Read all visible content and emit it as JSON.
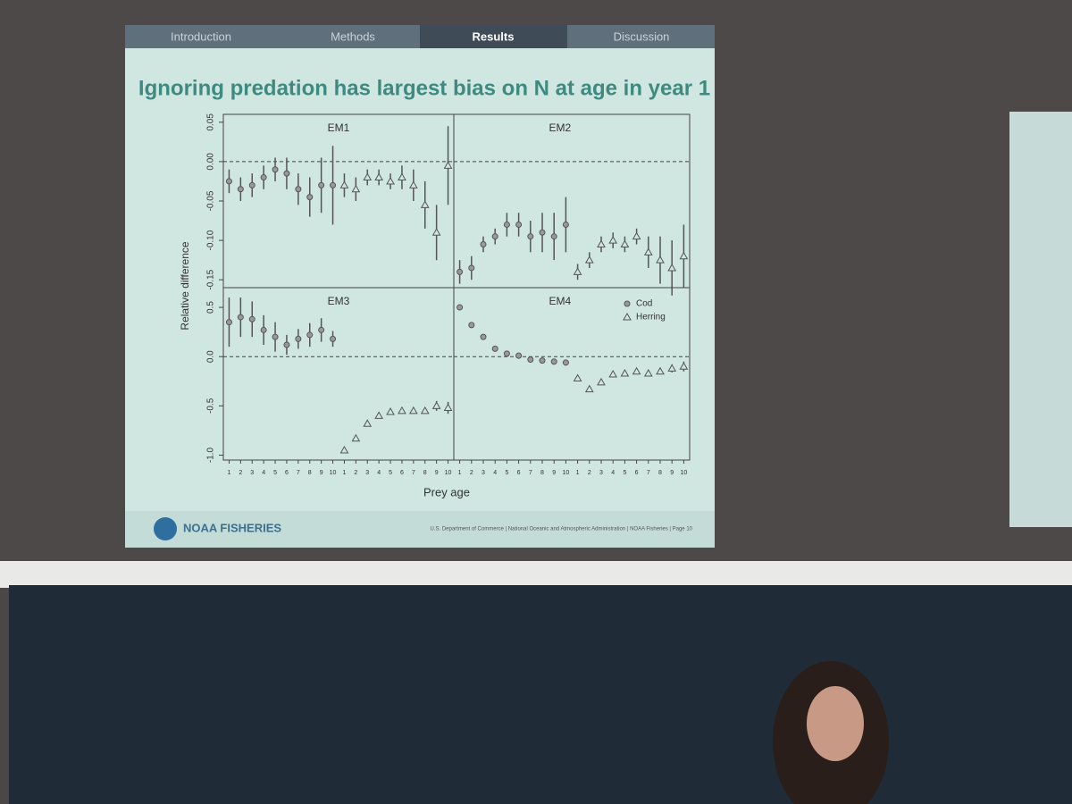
{
  "slide": {
    "nav": [
      "Introduction",
      "Methods",
      "Results",
      "Discussion"
    ],
    "title": "Ignoring predation has largest bias on N at age in year 1",
    "ylabel": "Relative difference",
    "xlabel": "Prey age",
    "logo": "NOAA FISHERIES",
    "footer": "U.S. Department of Commerce | National Oceanic and Atmospheric Administration | NOAA Fisheries | Page 10"
  },
  "chart_data": [
    {
      "type": "errorbar",
      "title": "EM1",
      "categories": [
        null,
        null,
        null,
        null,
        null,
        null,
        null,
        null,
        null,
        null,
        null,
        null,
        null,
        null,
        null,
        null,
        null,
        null,
        null,
        null
      ],
      "series": [
        {
          "name": "Cod",
          "marker": "circle",
          "color": "#555555",
          "values": [
            -0.025,
            -0.035,
            -0.03,
            -0.02,
            -0.01,
            -0.015,
            -0.035,
            -0.045,
            -0.03,
            -0.03,
            null,
            null,
            null,
            null,
            null,
            null,
            null,
            null,
            null,
            null
          ],
          "errors": [
            0.015,
            0.015,
            0.015,
            0.015,
            0.015,
            0.02,
            0.02,
            0.025,
            0.035,
            0.05,
            null,
            null,
            null,
            null,
            null,
            null,
            null,
            null,
            null,
            null
          ]
        },
        {
          "name": "Herring",
          "marker": "triangle",
          "color": "#555555",
          "values": [
            null,
            null,
            null,
            null,
            null,
            null,
            null,
            null,
            null,
            null,
            -0.03,
            -0.035,
            -0.02,
            -0.02,
            -0.025,
            -0.02,
            -0.03,
            -0.055,
            -0.09,
            -0.005
          ],
          "errors": [
            null,
            null,
            null,
            null,
            null,
            null,
            null,
            null,
            null,
            null,
            0.015,
            0.015,
            0.01,
            0.01,
            0.01,
            0.015,
            0.02,
            0.03,
            0.035,
            0.05
          ]
        }
      ],
      "ylim": [
        -0.16,
        0.06
      ],
      "yticks": [
        -0.15,
        {
          "value": -0.1,
          "label": "-0.10"
        },
        -0.05,
        {
          "value": 0,
          "label": "0.00"
        },
        0.05
      ]
    },
    {
      "type": "errorbar",
      "title": "EM2",
      "categories": [
        null,
        null,
        null,
        null,
        null,
        null,
        null,
        null,
        null,
        null,
        null,
        null,
        null,
        null,
        null,
        null,
        null,
        null,
        null,
        null
      ],
      "series": [
        {
          "name": "Cod",
          "marker": "circle",
          "color": "#555555",
          "values": [
            -0.14,
            -0.135,
            -0.105,
            -0.095,
            -0.08,
            -0.08,
            -0.095,
            -0.09,
            -0.095,
            -0.08,
            null,
            null,
            null,
            null,
            null,
            null,
            null,
            null,
            null,
            null
          ],
          "errors": [
            0.015,
            0.015,
            0.01,
            0.01,
            0.015,
            0.015,
            0.02,
            0.025,
            0.03,
            0.035,
            null,
            null,
            null,
            null,
            null,
            null,
            null,
            null,
            null,
            null
          ]
        },
        {
          "name": "Herring",
          "marker": "triangle",
          "color": "#555555",
          "values": [
            null,
            null,
            null,
            null,
            null,
            null,
            null,
            null,
            null,
            null,
            -0.14,
            -0.125,
            -0.105,
            -0.1,
            -0.105,
            -0.095,
            -0.115,
            -0.125,
            -0.135,
            -0.12
          ],
          "errors": [
            null,
            null,
            null,
            null,
            null,
            null,
            null,
            null,
            null,
            null,
            0.01,
            0.01,
            0.01,
            0.01,
            0.01,
            0.01,
            0.02,
            0.03,
            0.035,
            0.04
          ]
        }
      ],
      "ylim": [
        -0.16,
        0.06
      ]
    },
    {
      "type": "errorbar",
      "title": "EM3",
      "categories": [
        "1",
        "2",
        "3",
        "4",
        "5",
        "6",
        "7",
        "8",
        "9",
        "10",
        "1",
        "2",
        "3",
        "4",
        "5",
        "6",
        "7",
        "8",
        "9",
        "10"
      ],
      "series": [
        {
          "name": "Cod",
          "marker": "circle",
          "color": "#555555",
          "values": [
            0.35,
            0.4,
            0.38,
            0.27,
            0.2,
            0.12,
            0.18,
            0.22,
            0.27,
            0.18,
            null,
            null,
            null,
            null,
            null,
            null,
            null,
            null,
            null,
            null
          ],
          "errors": [
            0.25,
            0.2,
            0.18,
            0.15,
            0.15,
            0.1,
            0.1,
            0.12,
            0.12,
            0.08,
            null,
            null,
            null,
            null,
            null,
            null,
            null,
            null,
            null,
            null
          ]
        },
        {
          "name": "Herring",
          "marker": "triangle",
          "color": "#555555",
          "values": [
            null,
            null,
            null,
            null,
            null,
            null,
            null,
            null,
            null,
            null,
            -0.95,
            -0.83,
            -0.68,
            -0.6,
            -0.56,
            -0.55,
            -0.55,
            -0.55,
            -0.5,
            -0.52
          ],
          "errors": [
            null,
            null,
            null,
            null,
            null,
            null,
            null,
            null,
            null,
            null,
            0.02,
            0.02,
            0.02,
            0.02,
            0.02,
            0.02,
            0.02,
            0.02,
            0.05,
            0.06
          ]
        }
      ],
      "ylim": [
        -1.05,
        0.7
      ],
      "yticks": [
        {
          "value": -1,
          "label": "-1.0"
        },
        -0.5,
        {
          "value": 0,
          "label": "0.0"
        },
        0.5
      ]
    },
    {
      "type": "errorbar",
      "title": "EM4",
      "legend": "top-right",
      "categories": [
        "1",
        "2",
        "3",
        "4",
        "5",
        "6",
        "7",
        "8",
        "9",
        "10",
        "1",
        "2",
        "3",
        "4",
        "5",
        "6",
        "7",
        "8",
        "9",
        "10"
      ],
      "series": [
        {
          "name": "Cod",
          "marker": "circle",
          "color": "#555555",
          "values": [
            0.5,
            0.32,
            0.2,
            0.08,
            0.03,
            0.01,
            -0.03,
            -0.04,
            -0.05,
            -0.06,
            null,
            null,
            null,
            null,
            null,
            null,
            null,
            null,
            null,
            null
          ],
          "errors": [
            0.03,
            0.02,
            0.02,
            0.02,
            0.02,
            0.02,
            0.02,
            0.02,
            0.02,
            0.03,
            null,
            null,
            null,
            null,
            null,
            null,
            null,
            null,
            null,
            null
          ]
        },
        {
          "name": "Herring",
          "marker": "triangle",
          "color": "#555555",
          "values": [
            null,
            null,
            null,
            null,
            null,
            null,
            null,
            null,
            null,
            null,
            -0.22,
            -0.33,
            -0.26,
            -0.18,
            -0.17,
            -0.15,
            -0.17,
            -0.15,
            -0.12,
            -0.1
          ],
          "errors": [
            null,
            null,
            null,
            null,
            null,
            null,
            null,
            null,
            null,
            null,
            0.03,
            0.03,
            0.03,
            0.03,
            0.03,
            0.03,
            0.03,
            0.03,
            0.04,
            0.05
          ]
        }
      ],
      "ylim": [
        -1.05,
        0.7
      ]
    }
  ]
}
